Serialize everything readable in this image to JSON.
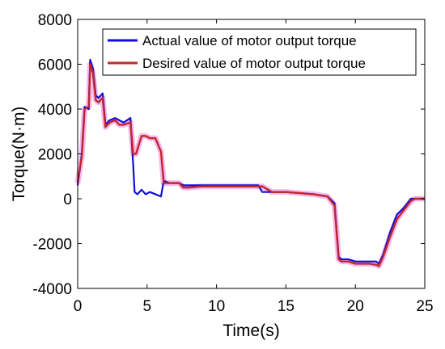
{
  "chart_data": {
    "type": "line",
    "title": "",
    "xlabel": "Time(s)",
    "ylabel": "Torque(N·m)",
    "xlim": [
      0,
      25
    ],
    "ylim": [
      -4000,
      8000
    ],
    "xticks": [
      "0",
      "5",
      "10",
      "15",
      "20",
      "25"
    ],
    "yticks": [
      "-4000",
      "-2000",
      "0",
      "2000",
      "4000",
      "6000",
      "8000"
    ],
    "grid": false,
    "legend_position": "top-right",
    "colors": {
      "actual": "#1010d8",
      "desired": "#c0282c",
      "highlight": "#f4a6e8"
    },
    "series": [
      {
        "name": "Actual value of motor output torque",
        "x": [
          0,
          0.3,
          0.5,
          0.8,
          0.9,
          1.1,
          1.3,
          1.5,
          1.8,
          2.0,
          2.3,
          2.7,
          3.0,
          3.3,
          3.8,
          4.0,
          4.1,
          4.3,
          4.6,
          4.9,
          5.2,
          5.6,
          6.0,
          6.2,
          6.6,
          7.3,
          7.6,
          8.0,
          9.0,
          10.0,
          11.0,
          12.0,
          13.0,
          13.3,
          14.0,
          15.0,
          16.0,
          17.0,
          18.0,
          18.5,
          18.8,
          19.0,
          19.5,
          20.0,
          20.5,
          21.0,
          21.5,
          21.7,
          22.0,
          22.5,
          23.0,
          23.5,
          24.0,
          24.3,
          25.0
        ],
        "y": [
          600,
          2000,
          4100,
          4000,
          6200,
          5800,
          4600,
          4500,
          4700,
          3300,
          3500,
          3600,
          3500,
          3400,
          3600,
          1500,
          300,
          200,
          400,
          200,
          300,
          200,
          100,
          800,
          700,
          700,
          600,
          600,
          600,
          600,
          600,
          600,
          600,
          300,
          300,
          300,
          250,
          200,
          100,
          -200,
          -2600,
          -2700,
          -2700,
          -2800,
          -2800,
          -2800,
          -2800,
          -2900,
          -2500,
          -1500,
          -700,
          -400,
          0,
          0,
          0
        ]
      },
      {
        "name": "Desired value of motor output torque",
        "x": [
          0,
          0.3,
          0.5,
          0.8,
          0.9,
          1.1,
          1.3,
          1.5,
          1.8,
          2.0,
          2.3,
          2.7,
          3.0,
          3.3,
          3.8,
          4.0,
          4.2,
          4.6,
          4.9,
          5.2,
          5.6,
          6.0,
          6.2,
          6.6,
          7.3,
          7.6,
          8.0,
          9.0,
          10.0,
          11.0,
          12.0,
          13.0,
          13.3,
          14.0,
          15.0,
          16.0,
          17.0,
          18.0,
          18.5,
          18.8,
          19.0,
          19.5,
          20.0,
          20.5,
          21.0,
          21.5,
          21.7,
          22.0,
          22.5,
          23.0,
          23.5,
          24.0,
          24.3,
          25.0
        ],
        "y": [
          700,
          1900,
          4000,
          4100,
          6000,
          5600,
          4400,
          4300,
          4500,
          3200,
          3400,
          3500,
          3300,
          3300,
          3400,
          2000,
          2000,
          2800,
          2800,
          2700,
          2700,
          2100,
          700,
          700,
          700,
          500,
          500,
          550,
          550,
          550,
          550,
          550,
          550,
          300,
          300,
          250,
          200,
          100,
          -300,
          -2700,
          -2800,
          -2800,
          -2900,
          -2900,
          -2900,
          -2950,
          -3000,
          -2600,
          -1700,
          -900,
          -500,
          -100,
          0,
          0
        ]
      }
    ]
  }
}
